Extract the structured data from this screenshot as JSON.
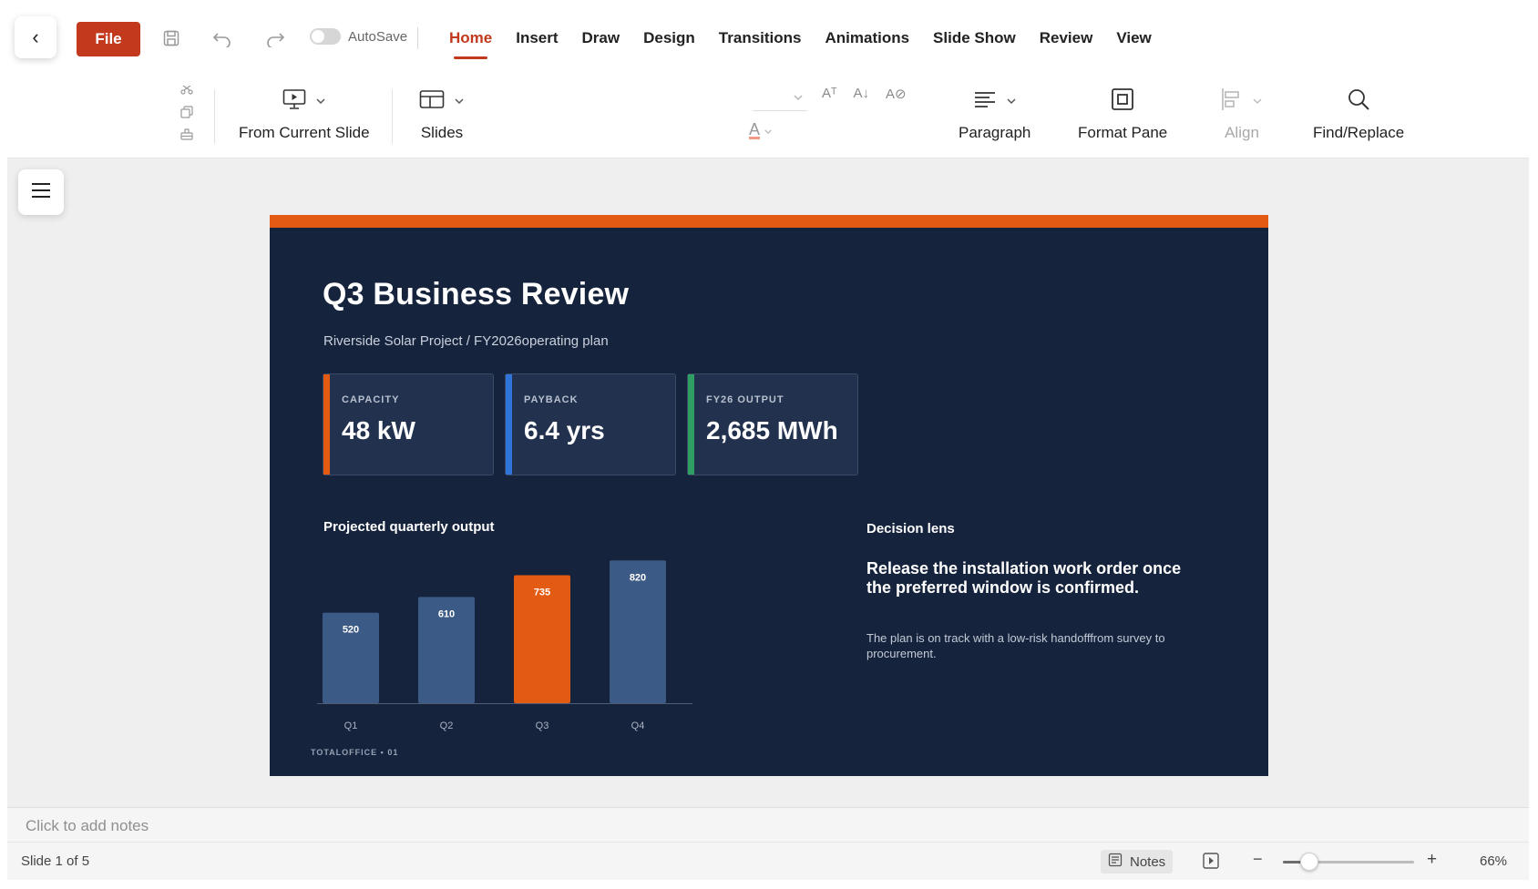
{
  "app": {
    "back_icon": "chevron-left-icon",
    "file_label": "File",
    "autosave_label": "AutoSave",
    "autosave_on": false
  },
  "tabs": [
    {
      "label": "Home",
      "active": true
    },
    {
      "label": "Insert"
    },
    {
      "label": "Draw"
    },
    {
      "label": "Design"
    },
    {
      "label": "Transitions"
    },
    {
      "label": "Animations"
    },
    {
      "label": "Slide Show"
    },
    {
      "label": "Review"
    },
    {
      "label": "View"
    }
  ],
  "ribbon": {
    "from_current_slide": "From Current Slide",
    "slides": "Slides",
    "paragraph": "Paragraph",
    "format_pane": "Format Pane",
    "align": "Align",
    "find_replace": "Find/Replace",
    "font_color_glyph": "A",
    "grow_font_glyph": "Aᵀ",
    "shrink_font_glyph": "A↓",
    "clear_format_glyph": "A⊘"
  },
  "slide": {
    "title": "Q3 Business Review",
    "subtitle": "Riverside Solar Project  /  FY2026operating plan",
    "kpis": [
      {
        "label": "CAPACITY",
        "value": "48 kW",
        "accent": "#e35a12"
      },
      {
        "label": "PAYBACK",
        "value": "6.4 yrs",
        "accent": "#2f74d9"
      },
      {
        "label": "FY26 OUTPUT",
        "value": "2,685 MWh",
        "accent": "#2e9e63"
      }
    ],
    "chart_title": "Projected quarterly output",
    "lens_title": "Decision lens",
    "lens_headline": "Release the installation work order once the preferred window is confirmed.",
    "lens_body": "The plan is on track with a low-risk handofffrom survey to procurement.",
    "footer": "TOTALOFFICE  •  01"
  },
  "chart_data": {
    "type": "bar",
    "title": "Projected quarterly output",
    "categories": [
      "Q1",
      "Q2",
      "Q3",
      "Q4"
    ],
    "values": [
      520,
      610,
      735,
      820
    ],
    "data_labels": [
      "520",
      "610",
      "735",
      "820"
    ],
    "highlight_index": 2,
    "colors": {
      "default": "#3b5a85",
      "highlight": "#e35a12"
    },
    "ylim": [
      0,
      900
    ],
    "grid": false,
    "xlabel": "",
    "ylabel": ""
  },
  "notes": {
    "placeholder": "Click to add notes"
  },
  "status": {
    "slide_count": "Slide 1 of 5",
    "notes_label": "Notes",
    "zoom_minus": "−",
    "zoom_plus": "+",
    "zoom_text": "66%",
    "zoom_level": 0.2
  }
}
